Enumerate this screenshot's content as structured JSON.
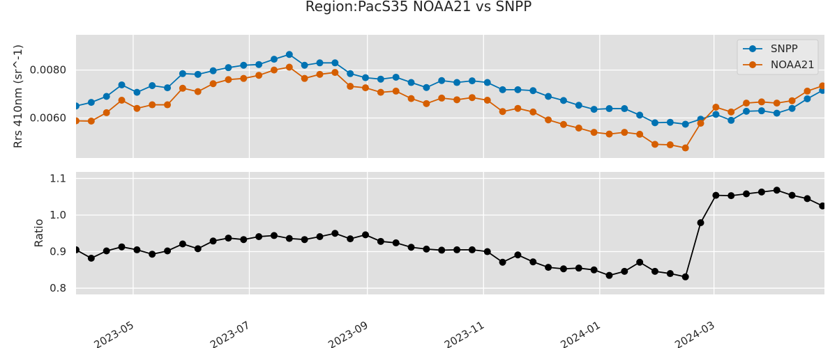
{
  "title": "Region:PacS35 NOAA21 vs SNPP",
  "chart_data": [
    {
      "type": "line",
      "ylabel": "Rrs 410nm (sr^-1)",
      "xlim": [
        "2023-04-01",
        "2024-04-28"
      ],
      "ylim": [
        0.00433,
        0.00947
      ],
      "yticks": [
        0.006,
        0.008
      ],
      "ytick_labels": [
        "0.0060",
        "0.0080"
      ],
      "grid": true,
      "legend": "top-right",
      "x": [
        "2023-04-01",
        "2023-04-09",
        "2023-04-17",
        "2023-04-25",
        "2023-05-03",
        "2023-05-11",
        "2023-05-19",
        "2023-05-27",
        "2023-06-04",
        "2023-06-12",
        "2023-06-20",
        "2023-06-28",
        "2023-07-06",
        "2023-07-14",
        "2023-07-22",
        "2023-07-30",
        "2023-08-07",
        "2023-08-15",
        "2023-08-23",
        "2023-08-31",
        "2023-09-08",
        "2023-09-16",
        "2023-09-24",
        "2023-10-02",
        "2023-10-10",
        "2023-10-18",
        "2023-10-26",
        "2023-11-03",
        "2023-11-11",
        "2023-11-19",
        "2023-11-27",
        "2023-12-05",
        "2023-12-13",
        "2023-12-21",
        "2023-12-29",
        "2024-01-06",
        "2024-01-14",
        "2024-01-22",
        "2024-01-30",
        "2024-02-07",
        "2024-02-15",
        "2024-02-23",
        "2024-03-02",
        "2024-03-10",
        "2024-03-18",
        "2024-03-26",
        "2024-04-03",
        "2024-04-11",
        "2024-04-19",
        "2024-04-27"
      ],
      "series": [
        {
          "name": "SNPP",
          "color": "#0072b2",
          "values": [
            0.0065,
            0.00665,
            0.0069,
            0.00738,
            0.00707,
            0.00735,
            0.00726,
            0.00785,
            0.00782,
            0.00797,
            0.0081,
            0.0082,
            0.00823,
            0.00845,
            0.00865,
            0.0082,
            0.0083,
            0.0083,
            0.00785,
            0.00768,
            0.00762,
            0.0077,
            0.00748,
            0.00727,
            0.00756,
            0.00748,
            0.00755,
            0.00748,
            0.00718,
            0.00718,
            0.00714,
            0.0069,
            0.00673,
            0.00653,
            0.00636,
            0.00639,
            0.00639,
            0.00612,
            0.0058,
            0.00582,
            0.00574,
            0.00595,
            0.00615,
            0.0059,
            0.00628,
            0.0063,
            0.0062,
            0.0064,
            0.0068,
            0.00715
          ]
        },
        {
          "name": "NOAA21",
          "color": "#d55e00",
          "values": [
            0.00588,
            0.00587,
            0.00622,
            0.00674,
            0.0064,
            0.00655,
            0.00655,
            0.00724,
            0.0071,
            0.00743,
            0.0076,
            0.00765,
            0.00778,
            0.008,
            0.00812,
            0.00765,
            0.00782,
            0.0079,
            0.00732,
            0.00726,
            0.00707,
            0.00712,
            0.00681,
            0.0066,
            0.00683,
            0.00676,
            0.00685,
            0.00674,
            0.00627,
            0.0064,
            0.00625,
            0.00592,
            0.00573,
            0.00558,
            0.0054,
            0.00533,
            0.0054,
            0.00532,
            0.0049,
            0.00488,
            0.00475,
            0.00578,
            0.00645,
            0.00625,
            0.00662,
            0.00667,
            0.00662,
            0.00672,
            0.00712,
            0.00734
          ]
        }
      ]
    },
    {
      "type": "line",
      "ylabel": "Ratio",
      "xlim": [
        "2023-04-01",
        "2024-04-28"
      ],
      "ylim": [
        0.783,
        1.118
      ],
      "yticks": [
        0.8,
        0.9,
        1.0,
        1.1
      ],
      "ytick_labels": [
        "0.8",
        "0.9",
        "1.0",
        "1.1"
      ],
      "grid": true,
      "xticks": [
        "2023-05-01",
        "2023-07-01",
        "2023-09-01",
        "2023-11-01",
        "2024-01-01",
        "2024-03-01"
      ],
      "xtick_labels": [
        "2023-05",
        "2023-07",
        "2023-09",
        "2023-11",
        "2024-01",
        "2024-03"
      ],
      "x": [
        "2023-04-01",
        "2023-04-09",
        "2023-04-17",
        "2023-04-25",
        "2023-05-03",
        "2023-05-11",
        "2023-05-19",
        "2023-05-27",
        "2023-06-04",
        "2023-06-12",
        "2023-06-20",
        "2023-06-28",
        "2023-07-06",
        "2023-07-14",
        "2023-07-22",
        "2023-07-30",
        "2023-08-07",
        "2023-08-15",
        "2023-08-23",
        "2023-08-31",
        "2023-09-08",
        "2023-09-16",
        "2023-09-24",
        "2023-10-02",
        "2023-10-10",
        "2023-10-18",
        "2023-10-26",
        "2023-11-03",
        "2023-11-11",
        "2023-11-19",
        "2023-11-27",
        "2023-12-05",
        "2023-12-13",
        "2023-12-21",
        "2023-12-29",
        "2024-01-06",
        "2024-01-14",
        "2024-01-22",
        "2024-01-30",
        "2024-02-07",
        "2024-02-15",
        "2024-02-23",
        "2024-03-02",
        "2024-03-10",
        "2024-03-18",
        "2024-03-26",
        "2024-04-03",
        "2024-04-11",
        "2024-04-19",
        "2024-04-27"
      ],
      "series": [
        {
          "color": "#000000",
          "values": [
            0.905,
            0.882,
            0.902,
            0.913,
            0.905,
            0.893,
            0.902,
            0.921,
            0.908,
            0.929,
            0.937,
            0.933,
            0.941,
            0.944,
            0.936,
            0.933,
            0.941,
            0.95,
            0.935,
            0.946,
            0.928,
            0.924,
            0.912,
            0.907,
            0.904,
            0.905,
            0.905,
            0.9,
            0.871,
            0.891,
            0.872,
            0.857,
            0.853,
            0.855,
            0.85,
            0.835,
            0.846,
            0.871,
            0.846,
            0.84,
            0.831,
            0.979,
            1.054,
            1.053,
            1.058,
            1.063,
            1.068,
            1.054,
            1.045,
            1.025
          ]
        }
      ]
    }
  ]
}
